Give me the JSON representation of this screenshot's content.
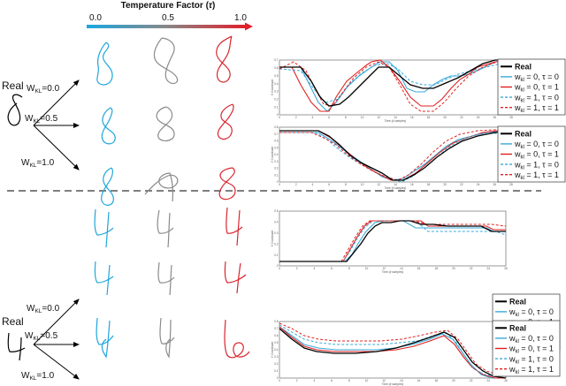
{
  "header": {
    "title": "Temperature Factor (",
    "tau_symbol": "τ",
    "title_close": ")",
    "tick_0": "0.0",
    "tick_mid": "0.5",
    "tick_1": "1.0",
    "gradient_colors": [
      "#1aa7e0",
      "#888888",
      "#e0202a"
    ]
  },
  "panels": [
    {
      "real_label": "Real",
      "weights": [
        "W",
        "W",
        "W"
      ],
      "kl_sub": "KL",
      "weight_values": [
        "=0.0",
        "=0.5",
        "=1.0"
      ],
      "chart_x": {
        "ylabel": "X Coordinate",
        "xlabel": "Time (# samples)",
        "xticks": [
          "0",
          "2",
          "4",
          "6",
          "8",
          "10",
          "12",
          "14",
          "16",
          "18",
          "20",
          "22",
          "24",
          "26",
          "28"
        ],
        "yticks": [
          "0",
          "0.1",
          "0.2",
          "0.3",
          "0.4",
          "0.5",
          "0.6",
          "0.7"
        ]
      },
      "chart_y": {
        "ylabel": "Y Coordinate",
        "xlabel": "Time (# samples)",
        "xticks": [
          "0",
          "2",
          "4",
          "6",
          "8",
          "10",
          "12",
          "14",
          "16",
          "18",
          "20",
          "22",
          "24",
          "26",
          "28"
        ],
        "yticks": [
          "0",
          "0.1",
          "0.2",
          "0.3",
          "0.4",
          "0.5",
          "0.6",
          "0.7",
          "0.8"
        ]
      }
    },
    {
      "real_label": "Real",
      "weights": [
        "W",
        "W",
        "W"
      ],
      "kl_sub": "KL",
      "weight_values": [
        "=0.0",
        "=0.5",
        "=1.0"
      ],
      "chart_x": {
        "ylabel": "X Coordinate",
        "xlabel": "Time (# samples)",
        "xticks": [
          "0",
          "2",
          "4",
          "6",
          "8",
          "10",
          "12",
          "14",
          "16",
          "18",
          "20",
          "22",
          "24",
          "26"
        ],
        "yticks": [
          "0",
          "0.1",
          "0.2",
          "0.3",
          "0.4",
          "0.5"
        ]
      },
      "chart_y": {
        "ylabel": "Y Coordinate",
        "xlabel": "Time (# samples)",
        "xticks": [
          "0",
          "2",
          "4",
          "6",
          "8",
          "10",
          "12",
          "14",
          "16",
          "18",
          "20",
          "22",
          "24",
          "26"
        ],
        "yticks": [
          "0",
          "0.1",
          "0.2",
          "0.3",
          "0.4",
          "0.5",
          "0.6",
          "0.7",
          "0.8"
        ]
      }
    }
  ],
  "legend": [
    {
      "main": "Real",
      "sub": "",
      "rest": "",
      "color": "#000000",
      "dash": false
    },
    {
      "main": "w",
      "sub": "kl",
      "rest": " = 0, τ = 0",
      "color": "#3aa9d8",
      "dash": false
    },
    {
      "main": "w",
      "sub": "kl",
      "rest": " = 0, τ = 1",
      "color": "#e02020",
      "dash": false
    },
    {
      "main": "w",
      "sub": "kl",
      "rest": " = 1, τ = 0",
      "color": "#3aa9d8",
      "dash": true
    },
    {
      "main": "w",
      "sub": "kl",
      "rest": " = 1, τ = 1",
      "color": "#e02020",
      "dash": true
    }
  ],
  "colors": {
    "blue": "#1fa6dc",
    "gray": "#8a8a8a",
    "red": "#d9262e",
    "black": "#000000",
    "legend_blue": "#3aa9d8",
    "legend_red": "#e02020"
  }
}
